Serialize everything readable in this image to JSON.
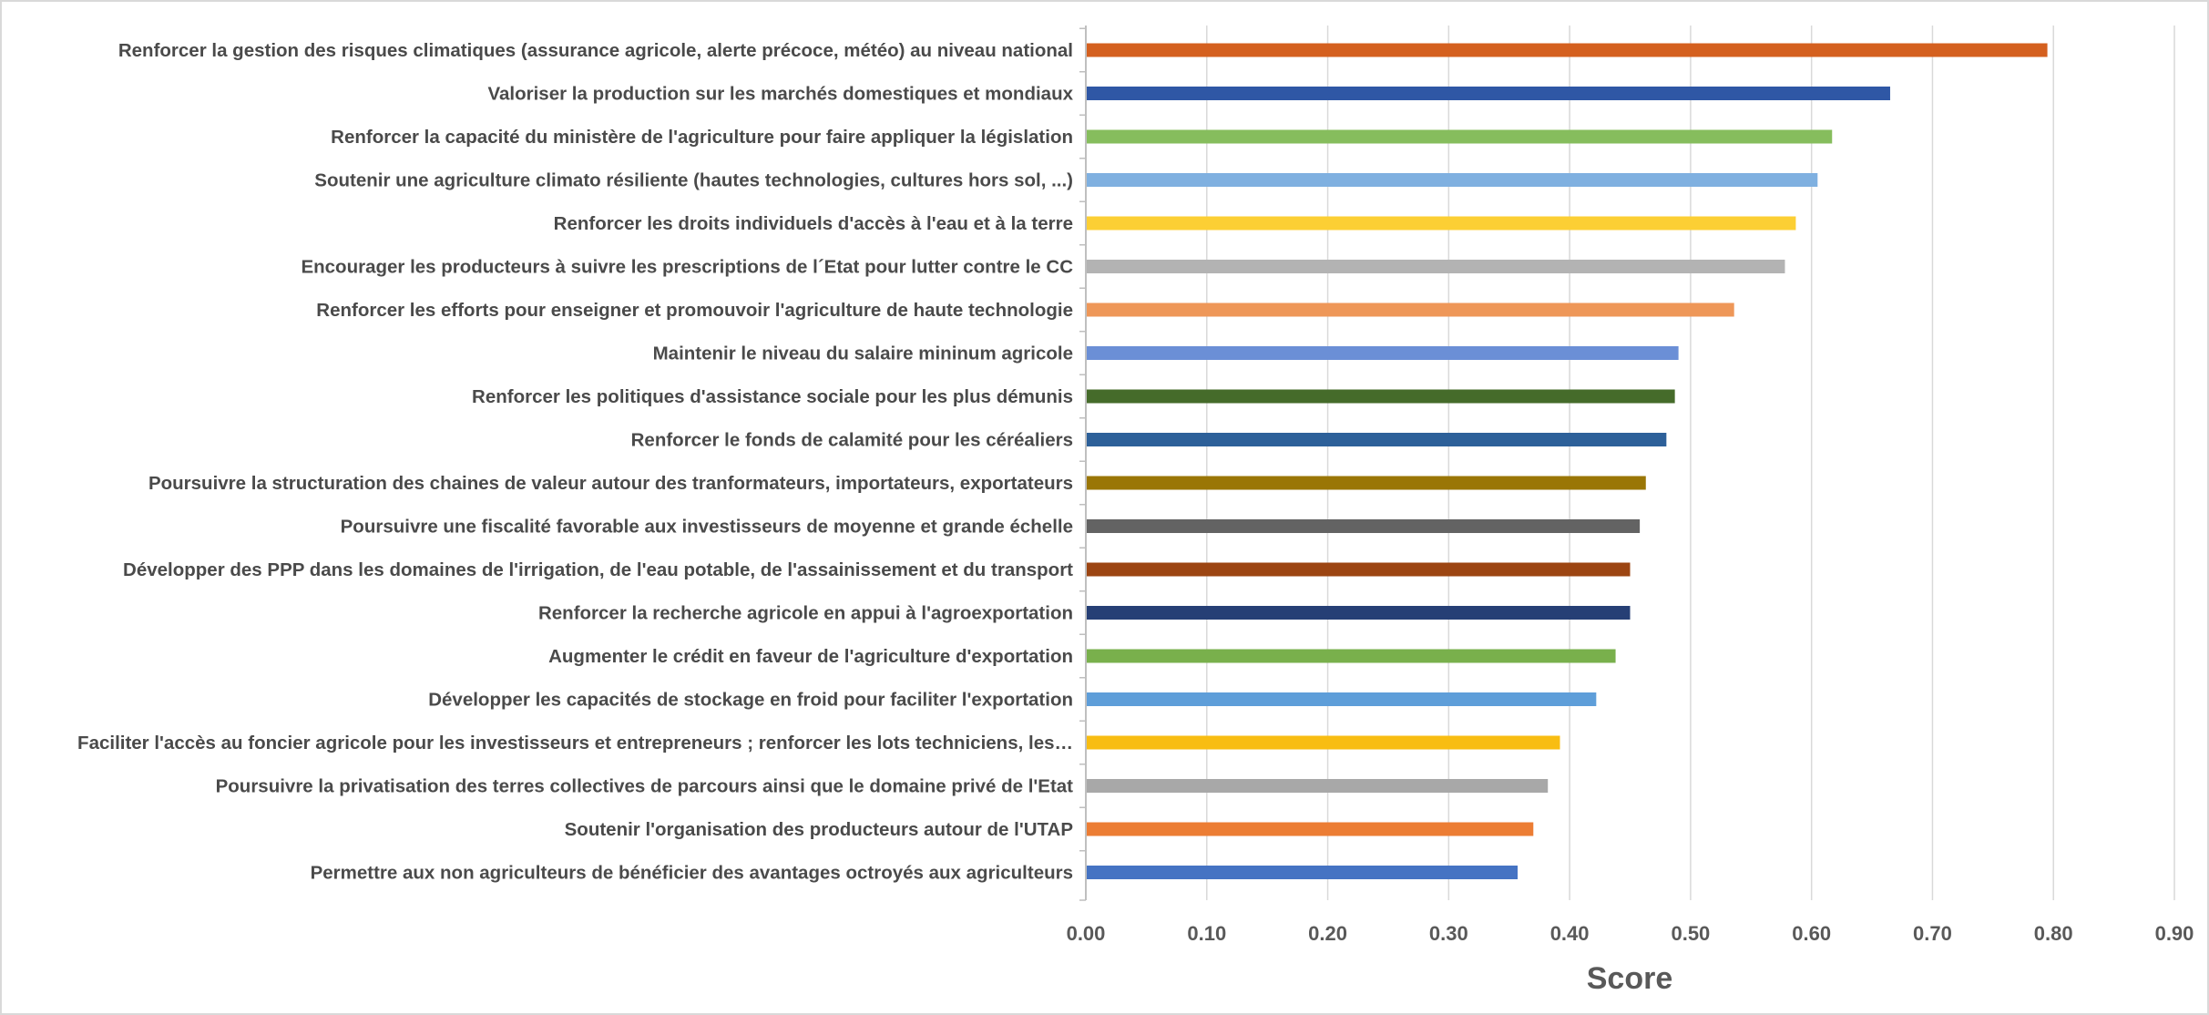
{
  "chart_data": {
    "type": "bar",
    "orientation": "horizontal",
    "title": "",
    "xlabel": "Score",
    "ylabel": "",
    "xlim": [
      0,
      0.9
    ],
    "x_ticks": [
      "0.00",
      "0.10",
      "0.20",
      "0.30",
      "0.40",
      "0.50",
      "0.60",
      "0.70",
      "0.80",
      "0.90"
    ],
    "grid": "vertical",
    "legend": "none",
    "categories": [
      "Renforcer la gestion des risques climatiques (assurance agricole, alerte précoce, météo) au niveau national",
      "Valoriser la production sur les marchés domestiques et mondiaux",
      "Renforcer la capacité du ministère de l'agriculture pour faire appliquer la législation",
      "Soutenir une agriculture climato résiliente (hautes technologies, cultures hors sol, ...)",
      "Renforcer les droits individuels d'accès à l'eau et à la terre",
      "Encourager les producteurs à suivre les prescriptions de l´Etat pour lutter contre le CC",
      "Renforcer les efforts pour enseigner et promouvoir l'agriculture de haute technologie",
      "Maintenir le niveau du salaire mininum agricole",
      "Renforcer les politiques d'assistance sociale pour les plus démunis",
      "Renforcer le fonds de calamité pour les céréaliers",
      "Poursuivre la structuration des chaines de valeur autour des tranformateurs, importateurs, exportateurs",
      "Poursuivre une fiscalité favorable aux investisseurs de moyenne et grande échelle",
      "Développer des PPP dans les domaines de l'irrigation, de l'eau potable, de l'assainissement et du transport",
      "Renforcer la recherche agricole en appui à l'agroexportation",
      "Augmenter le crédit en faveur de l'agriculture d'exportation",
      "Développer les capacités de stockage en froid pour faciliter l'exportation",
      "Faciliter l'accès au foncier agricole pour les investisseurs et entrepreneurs ; renforcer les lots techniciens,  les…",
      "Poursuivre la privatisation des terres collectives de parcours ainsi que le domaine privé de l'Etat",
      "Soutenir l'organisation des producteurs autour de l'UTAP",
      "Permettre aux non agriculteurs de bénéficier des avantages octroyés aux agriculteurs"
    ],
    "values": [
      0.795,
      0.665,
      0.617,
      0.605,
      0.587,
      0.578,
      0.536,
      0.49,
      0.487,
      0.48,
      0.463,
      0.458,
      0.45,
      0.45,
      0.438,
      0.422,
      0.392,
      0.382,
      0.37,
      0.357
    ],
    "colors": [
      "#d4601f",
      "#2f57a5",
      "#86bd5d",
      "#7fb0e0",
      "#fccf34",
      "#b3b3b3",
      "#ee9758",
      "#6b8fd6",
      "#456b2a",
      "#2d6099",
      "#9a7606",
      "#636363",
      "#9c4512",
      "#263f75",
      "#79b04c",
      "#5e9ed9",
      "#f8bd12",
      "#a8a8a8",
      "#ec7d34",
      "#4573c3"
    ]
  }
}
